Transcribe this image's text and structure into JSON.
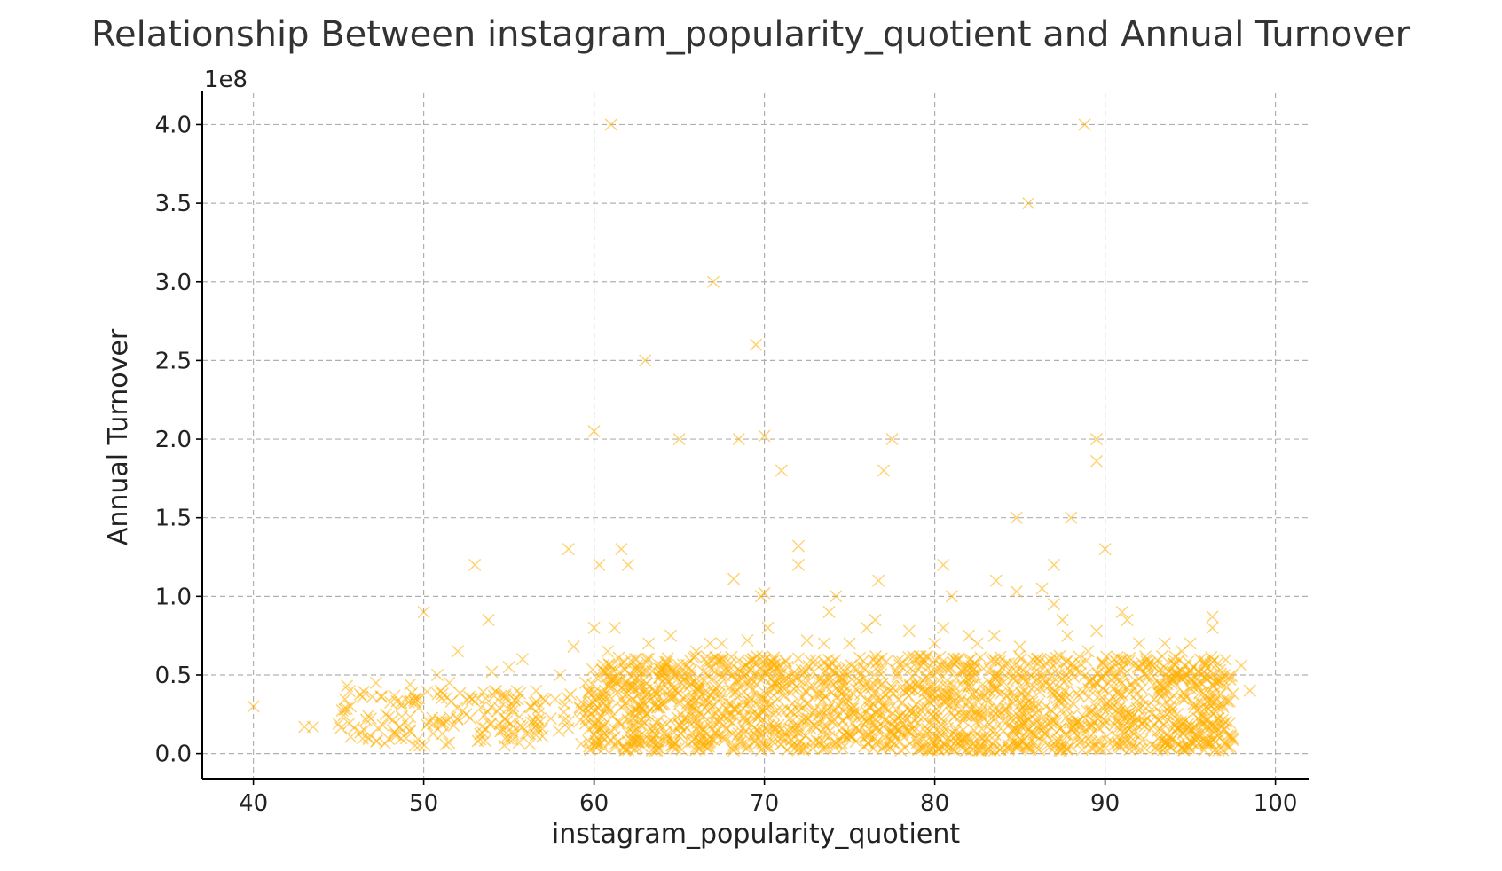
{
  "chart_data": {
    "type": "scatter",
    "title": "Relationship Between instagram_popularity_quotient and Annual Turnover",
    "xlabel": "instagram_popularity_quotient",
    "ylabel": "Annual Turnover",
    "y_offset_label": "1e8",
    "xlim": [
      37,
      102
    ],
    "ylim": [
      -0.16,
      4.2
    ],
    "y_unit_multiplier": 100000000,
    "x_ticks": [
      40,
      50,
      60,
      70,
      80,
      90,
      100
    ],
    "x_tick_labels": [
      "40",
      "50",
      "60",
      "70",
      "80",
      "90",
      "100"
    ],
    "y_ticks": [
      0.0,
      0.5,
      1.0,
      1.5,
      2.0,
      2.5,
      3.0,
      3.5,
      4.0
    ],
    "y_tick_labels": [
      "0.0",
      "0.5",
      "1.0",
      "1.5",
      "2.0",
      "2.5",
      "3.0",
      "3.5",
      "4.0"
    ],
    "grid": true,
    "marker": "x",
    "color": "#FFB000",
    "point_alpha": 0.55,
    "series": [
      {
        "values_note_x": "instagram_popularity_quotient",
        "points": [
          [
            40.0,
            0.3
          ],
          [
            43.0,
            0.17
          ],
          [
            43.5,
            0.17
          ],
          [
            45.0,
            0.19
          ],
          [
            45.5,
            0.43
          ],
          [
            45.7,
            0.3
          ],
          [
            46.5,
            0.15
          ],
          [
            47.2,
            0.45
          ],
          [
            47.6,
            0.18
          ],
          [
            48.3,
            0.12
          ],
          [
            49.2,
            0.44
          ],
          [
            49.5,
            0.35
          ],
          [
            50.0,
            0.9
          ],
          [
            50.3,
            0.2
          ],
          [
            50.8,
            0.5
          ],
          [
            51.0,
            0.4
          ],
          [
            51.5,
            0.45
          ],
          [
            52.0,
            0.65
          ],
          [
            52.5,
            0.25
          ],
          [
            53.0,
            1.2
          ],
          [
            53.2,
            0.35
          ],
          [
            53.8,
            0.85
          ],
          [
            54.0,
            0.52
          ],
          [
            55.0,
            0.55
          ],
          [
            55.8,
            0.6
          ],
          [
            56.5,
            0.2
          ],
          [
            57.0,
            0.35
          ],
          [
            58.0,
            0.5
          ],
          [
            58.5,
            1.3
          ],
          [
            58.8,
            0.68
          ],
          [
            59.5,
            0.45
          ],
          [
            60.0,
            2.05
          ],
          [
            60.0,
            0.8
          ],
          [
            60.3,
            1.2
          ],
          [
            60.8,
            0.65
          ],
          [
            61.0,
            4.0
          ],
          [
            61.2,
            0.8
          ],
          [
            61.6,
            1.3
          ],
          [
            62.0,
            1.2
          ],
          [
            62.5,
            0.6
          ],
          [
            63.0,
            2.5
          ],
          [
            63.2,
            0.7
          ],
          [
            64.5,
            0.75
          ],
          [
            65.0,
            2.0
          ],
          [
            66.0,
            0.65
          ],
          [
            66.8,
            0.7
          ],
          [
            67.0,
            3.0
          ],
          [
            67.5,
            0.7
          ],
          [
            68.2,
            1.11
          ],
          [
            68.5,
            2.0
          ],
          [
            69.0,
            0.72
          ],
          [
            69.5,
            2.6
          ],
          [
            69.8,
            1.0
          ],
          [
            70.0,
            2.02
          ],
          [
            70.0,
            1.02
          ],
          [
            70.2,
            0.8
          ],
          [
            71.0,
            1.8
          ],
          [
            72.0,
            1.2
          ],
          [
            72.0,
            1.32
          ],
          [
            72.5,
            0.72
          ],
          [
            73.5,
            0.7
          ],
          [
            73.8,
            0.9
          ],
          [
            74.2,
            1.0
          ],
          [
            75.0,
            0.7
          ],
          [
            76.0,
            0.8
          ],
          [
            76.5,
            0.85
          ],
          [
            76.7,
            1.1
          ],
          [
            77.0,
            1.8
          ],
          [
            77.5,
            2.0
          ],
          [
            78.5,
            0.78
          ],
          [
            80.0,
            0.7
          ],
          [
            80.5,
            1.2
          ],
          [
            80.5,
            0.8
          ],
          [
            81.0,
            1.0
          ],
          [
            82.0,
            0.75
          ],
          [
            82.5,
            0.7
          ],
          [
            83.5,
            0.75
          ],
          [
            83.6,
            1.1
          ],
          [
            84.8,
            1.5
          ],
          [
            84.8,
            1.03
          ],
          [
            85.0,
            0.68
          ],
          [
            85.5,
            3.5
          ],
          [
            86.0,
            0.6
          ],
          [
            86.3,
            1.05
          ],
          [
            87.0,
            1.2
          ],
          [
            87.0,
            0.95
          ],
          [
            87.5,
            0.85
          ],
          [
            87.8,
            0.75
          ],
          [
            88.0,
            1.5
          ],
          [
            88.8,
            4.0
          ],
          [
            89.0,
            0.65
          ],
          [
            89.5,
            2.0
          ],
          [
            89.5,
            1.86
          ],
          [
            89.5,
            0.78
          ],
          [
            90.0,
            1.3
          ],
          [
            90.5,
            0.6
          ],
          [
            91.0,
            0.9
          ],
          [
            91.3,
            0.85
          ],
          [
            92.0,
            0.7
          ],
          [
            93.5,
            0.7
          ],
          [
            94.5,
            0.65
          ],
          [
            95.0,
            0.7
          ],
          [
            96.3,
            0.87
          ],
          [
            96.3,
            0.8
          ],
          [
            97.0,
            0.5
          ],
          [
            97.5,
            0.38
          ],
          [
            98.0,
            0.56
          ],
          [
            98.5,
            0.4
          ]
        ],
        "cluster": {
          "x_range": [
            59.6,
            97.5
          ],
          "y_range": [
            0.02,
            0.62
          ],
          "density": "dense",
          "sparse_x_range": [
            45.0,
            59.6
          ],
          "sparse_y_range": [
            0.05,
            0.4
          ]
        }
      }
    ]
  }
}
